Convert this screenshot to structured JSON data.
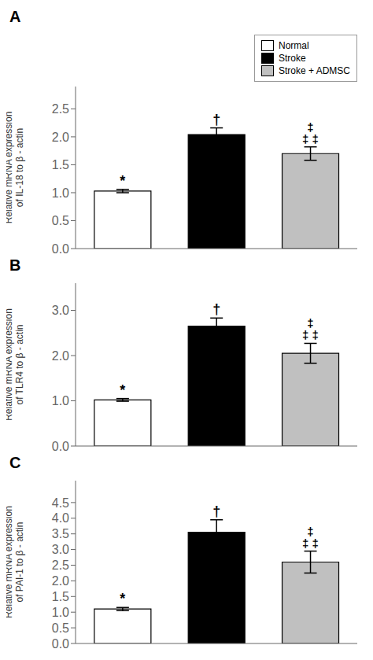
{
  "chart_data": [
    {
      "type": "bar",
      "title": "A",
      "ylabel": "Relative mRNA expression\nof IL-18 to β - actin",
      "categories": [
        "Normal",
        "Stroke",
        "Stroke + ADMSC"
      ],
      "values": [
        1.03,
        2.04,
        1.7
      ],
      "errors": [
        0.03,
        0.12,
        0.12
      ],
      "colors": [
        "#ffffff",
        "#000000",
        "#c0c0c0"
      ],
      "ylim": [
        0,
        2.9
      ],
      "yticks": [
        {
          "value": 0,
          "label": "0.0"
        },
        0.5,
        {
          "value": 1.0,
          "label": "1.0"
        },
        1.5,
        {
          "value": 2.0,
          "label": "2.0"
        },
        2.5
      ],
      "annotations": [
        {
          "category": "Normal",
          "lines": [
            "*"
          ]
        },
        {
          "category": "Stroke",
          "lines": [
            "†"
          ]
        },
        {
          "category": "Stroke + ADMSC",
          "lines": [
            "‡",
            "‡ ‡"
          ]
        }
      ],
      "grid": false,
      "legend": "upper right",
      "tick_labels": "y"
    },
    {
      "type": "bar",
      "title": "B",
      "ylabel": "Relative mRNA expression\nof TLR4 to β - actin",
      "categories": [
        "Normal",
        "Stroke",
        "Stroke + ADMSC"
      ],
      "values": [
        1.02,
        2.65,
        2.05
      ],
      "errors": [
        0.03,
        0.18,
        0.22
      ],
      "colors": [
        "#ffffff",
        "#000000",
        "#c0c0c0"
      ],
      "ylim": [
        0,
        3.6
      ],
      "yticks": [
        {
          "value": 0,
          "label": "0.0"
        },
        {
          "value": 1.0,
          "label": "1.0"
        },
        {
          "value": 2.0,
          "label": "2.0"
        },
        {
          "value": 3.0,
          "label": "3.0"
        }
      ],
      "annotations": [
        {
          "category": "Normal",
          "lines": [
            "*"
          ]
        },
        {
          "category": "Stroke",
          "lines": [
            "†"
          ]
        },
        {
          "category": "Stroke + ADMSC",
          "lines": [
            "‡",
            "‡ ‡"
          ]
        }
      ],
      "grid": false,
      "tick_labels": "y"
    },
    {
      "type": "bar",
      "title": "C",
      "ylabel": "Relative mRNA expression\nof PAI-1 to β - actin",
      "categories": [
        "Normal",
        "Stroke",
        "Stroke + ADMSC"
      ],
      "values": [
        1.1,
        3.55,
        2.6
      ],
      "errors": [
        0.05,
        0.4,
        0.35
      ],
      "colors": [
        "#ffffff",
        "#000000",
        "#c0c0c0"
      ],
      "ylim": [
        0,
        5.2
      ],
      "yticks": [
        {
          "value": 0,
          "label": "0.0"
        },
        0.5,
        {
          "value": 1.0,
          "label": "1.0"
        },
        1.5,
        {
          "value": 2.0,
          "label": "2.0"
        },
        2.5,
        {
          "value": 3.0,
          "label": "3.0"
        },
        3.5,
        {
          "value": 4.0,
          "label": "4.0"
        },
        4.5
      ],
      "annotations": [
        {
          "category": "Normal",
          "lines": [
            "*"
          ]
        },
        {
          "category": "Stroke",
          "lines": [
            "†"
          ]
        },
        {
          "category": "Stroke + ADMSC",
          "lines": [
            "‡",
            "‡ ‡"
          ]
        }
      ],
      "grid": false,
      "tick_labels": "y"
    }
  ]
}
